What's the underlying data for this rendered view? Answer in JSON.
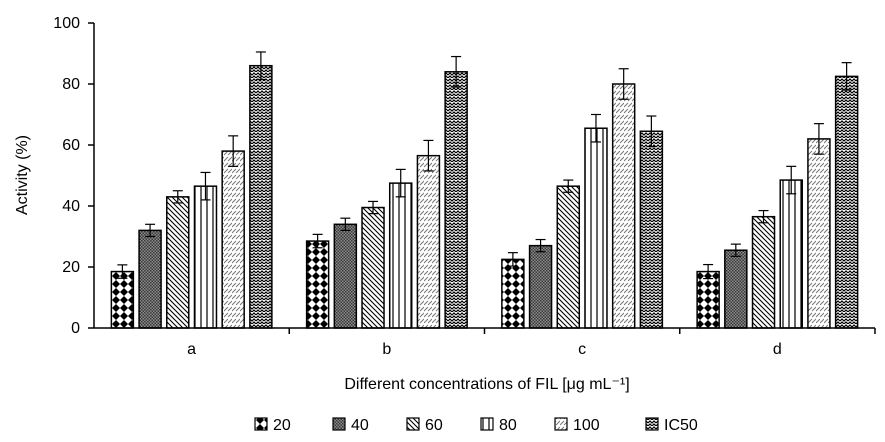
{
  "chart_data": {
    "type": "bar",
    "categories": [
      "a",
      "b",
      "c",
      "d"
    ],
    "series": [
      {
        "name": "20",
        "pattern": "checker",
        "values": [
          18.5,
          28.5,
          22.5,
          18.5
        ],
        "errors": [
          2.2,
          2.2,
          2.2,
          2.3
        ]
      },
      {
        "name": "40",
        "pattern": "dense",
        "values": [
          32.0,
          34.0,
          27.0,
          25.5
        ],
        "errors": [
          2.0,
          2.0,
          2.0,
          2.0
        ]
      },
      {
        "name": "60",
        "pattern": "diagonal",
        "values": [
          43.0,
          39.5,
          46.5,
          36.5
        ],
        "errors": [
          2.0,
          2.0,
          2.0,
          2.0
        ]
      },
      {
        "name": "80",
        "pattern": "vertical",
        "values": [
          46.5,
          47.5,
          65.5,
          48.5
        ],
        "errors": [
          4.5,
          4.5,
          4.5,
          4.5
        ]
      },
      {
        "name": "100",
        "pattern": "dashed",
        "values": [
          58.0,
          56.5,
          80.0,
          62.0
        ],
        "errors": [
          5.0,
          5.0,
          5.0,
          5.0
        ]
      },
      {
        "name": "IC50",
        "pattern": "zigzag",
        "values": [
          86.0,
          84.0,
          64.5,
          82.5
        ],
        "errors": [
          4.5,
          5.0,
          5.0,
          4.5
        ]
      }
    ],
    "xlabel": "Different concentrations of FIL [μg mL⁻¹]",
    "ylabel": "Activity (%)",
    "ylim": [
      0,
      100
    ],
    "yticks": [
      "0",
      "20",
      "40",
      "60",
      "80",
      "100"
    ],
    "grid": false,
    "legend_position": "bottom"
  }
}
